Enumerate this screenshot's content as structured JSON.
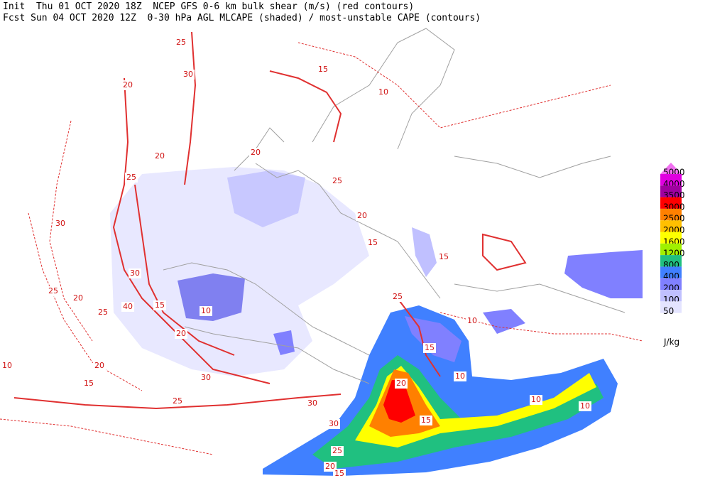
{
  "header": {
    "line1": "Init  Thu 01 OCT 2020 18Z  NCEP GFS 0-6 km bulk shear (m/s) (red contours)",
    "line2": "Fcst Sun 04 OCT 2020 12Z  0-30 hPa AGL MLCAPE (shaded) / most-unstable CAPE (contours)"
  },
  "colorbar": {
    "units": "J/kg",
    "levels": [
      {
        "value": 5000,
        "color": "#f070f0"
      },
      {
        "value": 4000,
        "color": "#e000e0"
      },
      {
        "value": 3500,
        "color": "#a000a0"
      },
      {
        "value": 3000,
        "color": "#ff0000"
      },
      {
        "value": 2500,
        "color": "#ff8000"
      },
      {
        "value": 2000,
        "color": "#ffc000"
      },
      {
        "value": 1600,
        "color": "#ffff00"
      },
      {
        "value": 1200,
        "color": "#a0f000"
      },
      {
        "value": 800,
        "color": "#20c080"
      },
      {
        "value": 400,
        "color": "#4080ff"
      },
      {
        "value": 200,
        "color": "#8080ff"
      },
      {
        "value": 100,
        "color": "#c0c0ff"
      },
      {
        "value": 50,
        "color": "#e4e4ff"
      }
    ]
  },
  "contour_labels": [
    25,
    30,
    20,
    20,
    25,
    30,
    25,
    20,
    25,
    40,
    30,
    15,
    10,
    20,
    10,
    15,
    20,
    30,
    25,
    30,
    30,
    25,
    20,
    15,
    20,
    15,
    15,
    10,
    10,
    10,
    10,
    25,
    20,
    15,
    15,
    15,
    20,
    25,
    10
  ]
}
